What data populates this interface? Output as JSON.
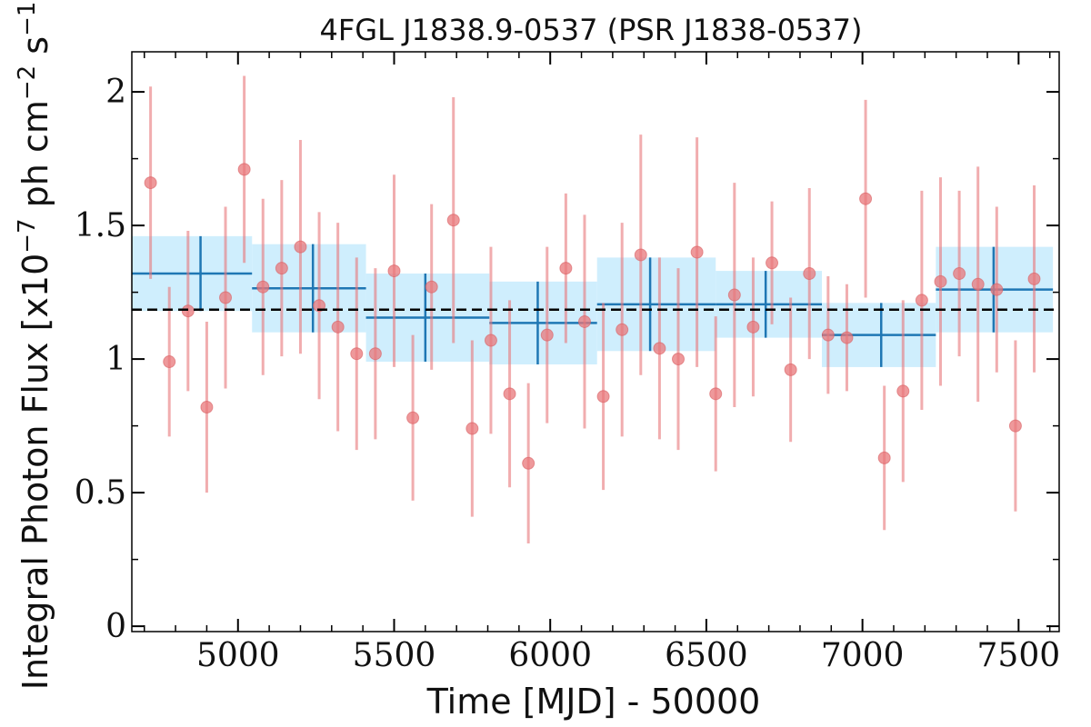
{
  "chart_data": {
    "type": "scatter",
    "title": "4FGL J1838.9-0537 (PSR J1838-0537)",
    "xlabel": "Time [MJD] - 50000",
    "ylabel": "Integral Photon Flux [x10^-7 ph cm^-2 s^-1]",
    "xlim": [
      4660,
      7630
    ],
    "ylim": [
      -0.02,
      2.15
    ],
    "x_ticks": [
      5000,
      5500,
      6000,
      6500,
      7000,
      7500
    ],
    "y_ticks": [
      0,
      0.5,
      1,
      1.5,
      2
    ],
    "y_tick_labels": [
      "0",
      "0.5",
      "1",
      "1.5",
      "2"
    ],
    "grid": false,
    "mean_flux": 1.185,
    "series": [
      {
        "kind": "points",
        "color": "#e8777a",
        "x": [
          4720,
          4780,
          4840,
          4900,
          4960,
          5020,
          5080,
          5140,
          5200,
          5260,
          5320,
          5380,
          5440,
          5500,
          5560,
          5620,
          5690,
          5750,
          5810,
          5870,
          5930,
          5990,
          6050,
          6110,
          6170,
          6230,
          6290,
          6350,
          6410,
          6470,
          6530,
          6590,
          6650,
          6710,
          6770,
          6830,
          6890,
          6950,
          7010,
          7070,
          7130,
          7190,
          7250,
          7310,
          7370,
          7430,
          7490,
          7550
        ],
        "y": [
          1.66,
          0.99,
          1.18,
          0.82,
          1.23,
          1.71,
          1.27,
          1.34,
          1.42,
          1.2,
          1.12,
          1.02,
          1.02,
          1.33,
          0.78,
          1.27,
          1.52,
          0.74,
          1.07,
          0.87,
          0.61,
          1.09,
          1.34,
          1.14,
          0.86,
          1.11,
          1.39,
          1.04,
          1.0,
          1.4,
          0.87,
          1.24,
          1.12,
          1.36,
          0.96,
          1.32,
          1.09,
          1.08,
          1.6,
          0.63,
          0.88,
          1.22,
          1.29,
          1.32,
          1.28,
          1.26,
          0.75,
          1.3
        ],
        "y_err": [
          0.36,
          0.28,
          0.3,
          0.32,
          0.34,
          0.35,
          0.33,
          0.33,
          0.4,
          0.35,
          0.39,
          0.36,
          0.32,
          0.36,
          0.31,
          0.31,
          0.46,
          0.33,
          0.35,
          0.35,
          0.3,
          0.33,
          0.28,
          0.4,
          0.35,
          0.4,
          0.45,
          0.34,
          0.34,
          0.43,
          0.29,
          0.42,
          0.26,
          0.23,
          0.27,
          0.32,
          0.22,
          0.2,
          0.37,
          0.27,
          0.34,
          0.41,
          0.39,
          0.31,
          0.44,
          0.31,
          0.32,
          0.35
        ]
      },
      {
        "kind": "bins",
        "color": "#1f77b4",
        "band_color": "#cfeefd",
        "x_start": [
          4660,
          5045,
          5410,
          5805,
          6150,
          6530,
          6870,
          7235
        ],
        "x_end": [
          5045,
          5410,
          5805,
          6150,
          6530,
          6870,
          7235,
          7610
        ],
        "center": [
          4880,
          5240,
          5600,
          5960,
          6320,
          6690,
          7060,
          7420
        ],
        "y": [
          1.32,
          1.265,
          1.155,
          1.135,
          1.205,
          1.205,
          1.09,
          1.26
        ],
        "y_err": [
          0.14,
          0.165,
          0.165,
          0.155,
          0.175,
          0.125,
          0.12,
          0.16
        ]
      }
    ]
  }
}
